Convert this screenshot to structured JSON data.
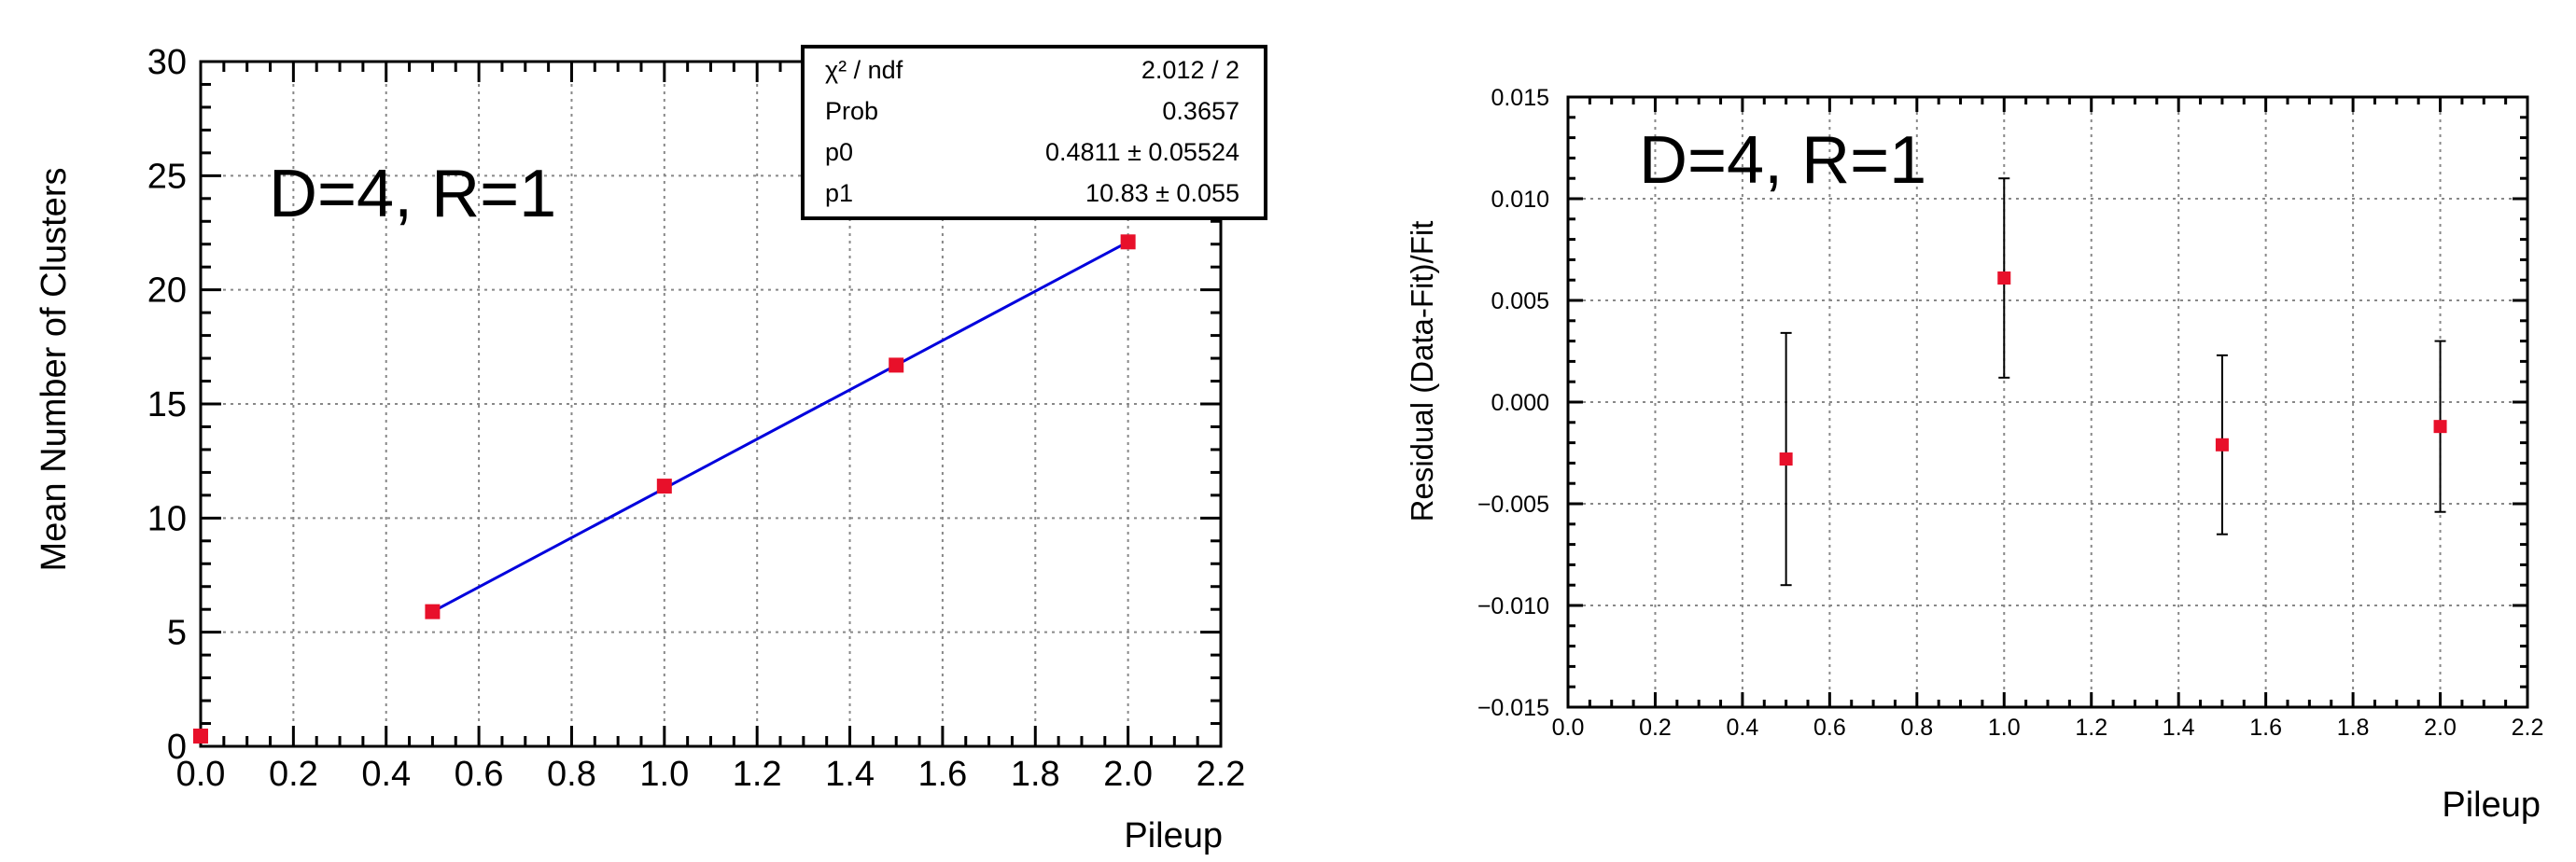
{
  "chart_data": [
    {
      "type": "scatter",
      "xlabel": "Pileup",
      "ylabel": "Mean Number of Clusters",
      "xlim": [
        0,
        2.2
      ],
      "ylim": [
        0,
        30
      ],
      "xticks": [
        "0.0",
        "0.2",
        "0.4",
        "0.6",
        "0.8",
        "1.0",
        "1.2",
        "1.4",
        "1.6",
        "1.8",
        "2.0",
        "2.2"
      ],
      "yticks": [
        "0",
        "5",
        "10",
        "15",
        "20",
        "25",
        "30"
      ],
      "grid": true,
      "annotation": "D=4,   R=1",
      "points": {
        "x": [
          0.0,
          0.5,
          1.0,
          1.5,
          2.0
        ],
        "y": [
          0.45,
          5.9,
          11.4,
          16.7,
          22.1
        ],
        "color": "#e8102a"
      },
      "fit_line": {
        "x": [
          0.5,
          2.0
        ],
        "y": [
          5.9,
          22.1
        ],
        "color": "#0000dd"
      },
      "stats_box": [
        {
          "label": "χ² / ndf",
          "value": "2.012 / 2"
        },
        {
          "label": "Prob",
          "value": "0.3657"
        },
        {
          "label": "p0",
          "value": "0.4811 ± 0.05524"
        },
        {
          "label": "p1",
          "value": "10.83 ± 0.055"
        }
      ]
    },
    {
      "type": "scatter",
      "xlabel": "Pileup",
      "ylabel": "Residual    (Data-Fit)/Fit",
      "xlim": [
        0,
        2.2
      ],
      "ylim": [
        -0.015,
        0.015
      ],
      "xticks": [
        "0.0",
        "0.2",
        "0.4",
        "0.6",
        "0.8",
        "1.0",
        "1.2",
        "1.4",
        "1.6",
        "1.8",
        "2.0",
        "2.2"
      ],
      "yticks": [
        "−0.015",
        "−0.010",
        "−0.005",
        "0.000",
        "0.005",
        "0.010",
        "0.015"
      ],
      "grid": true,
      "annotation": "D=4,   R=1",
      "points": {
        "x": [
          0.5,
          1.0,
          1.5,
          2.0
        ],
        "y": [
          -0.0028,
          0.0061,
          -0.0021,
          -0.0012
        ],
        "yerr": [
          0.0062,
          0.0049,
          0.0044,
          0.0042
        ],
        "color": "#e8102a"
      }
    }
  ]
}
